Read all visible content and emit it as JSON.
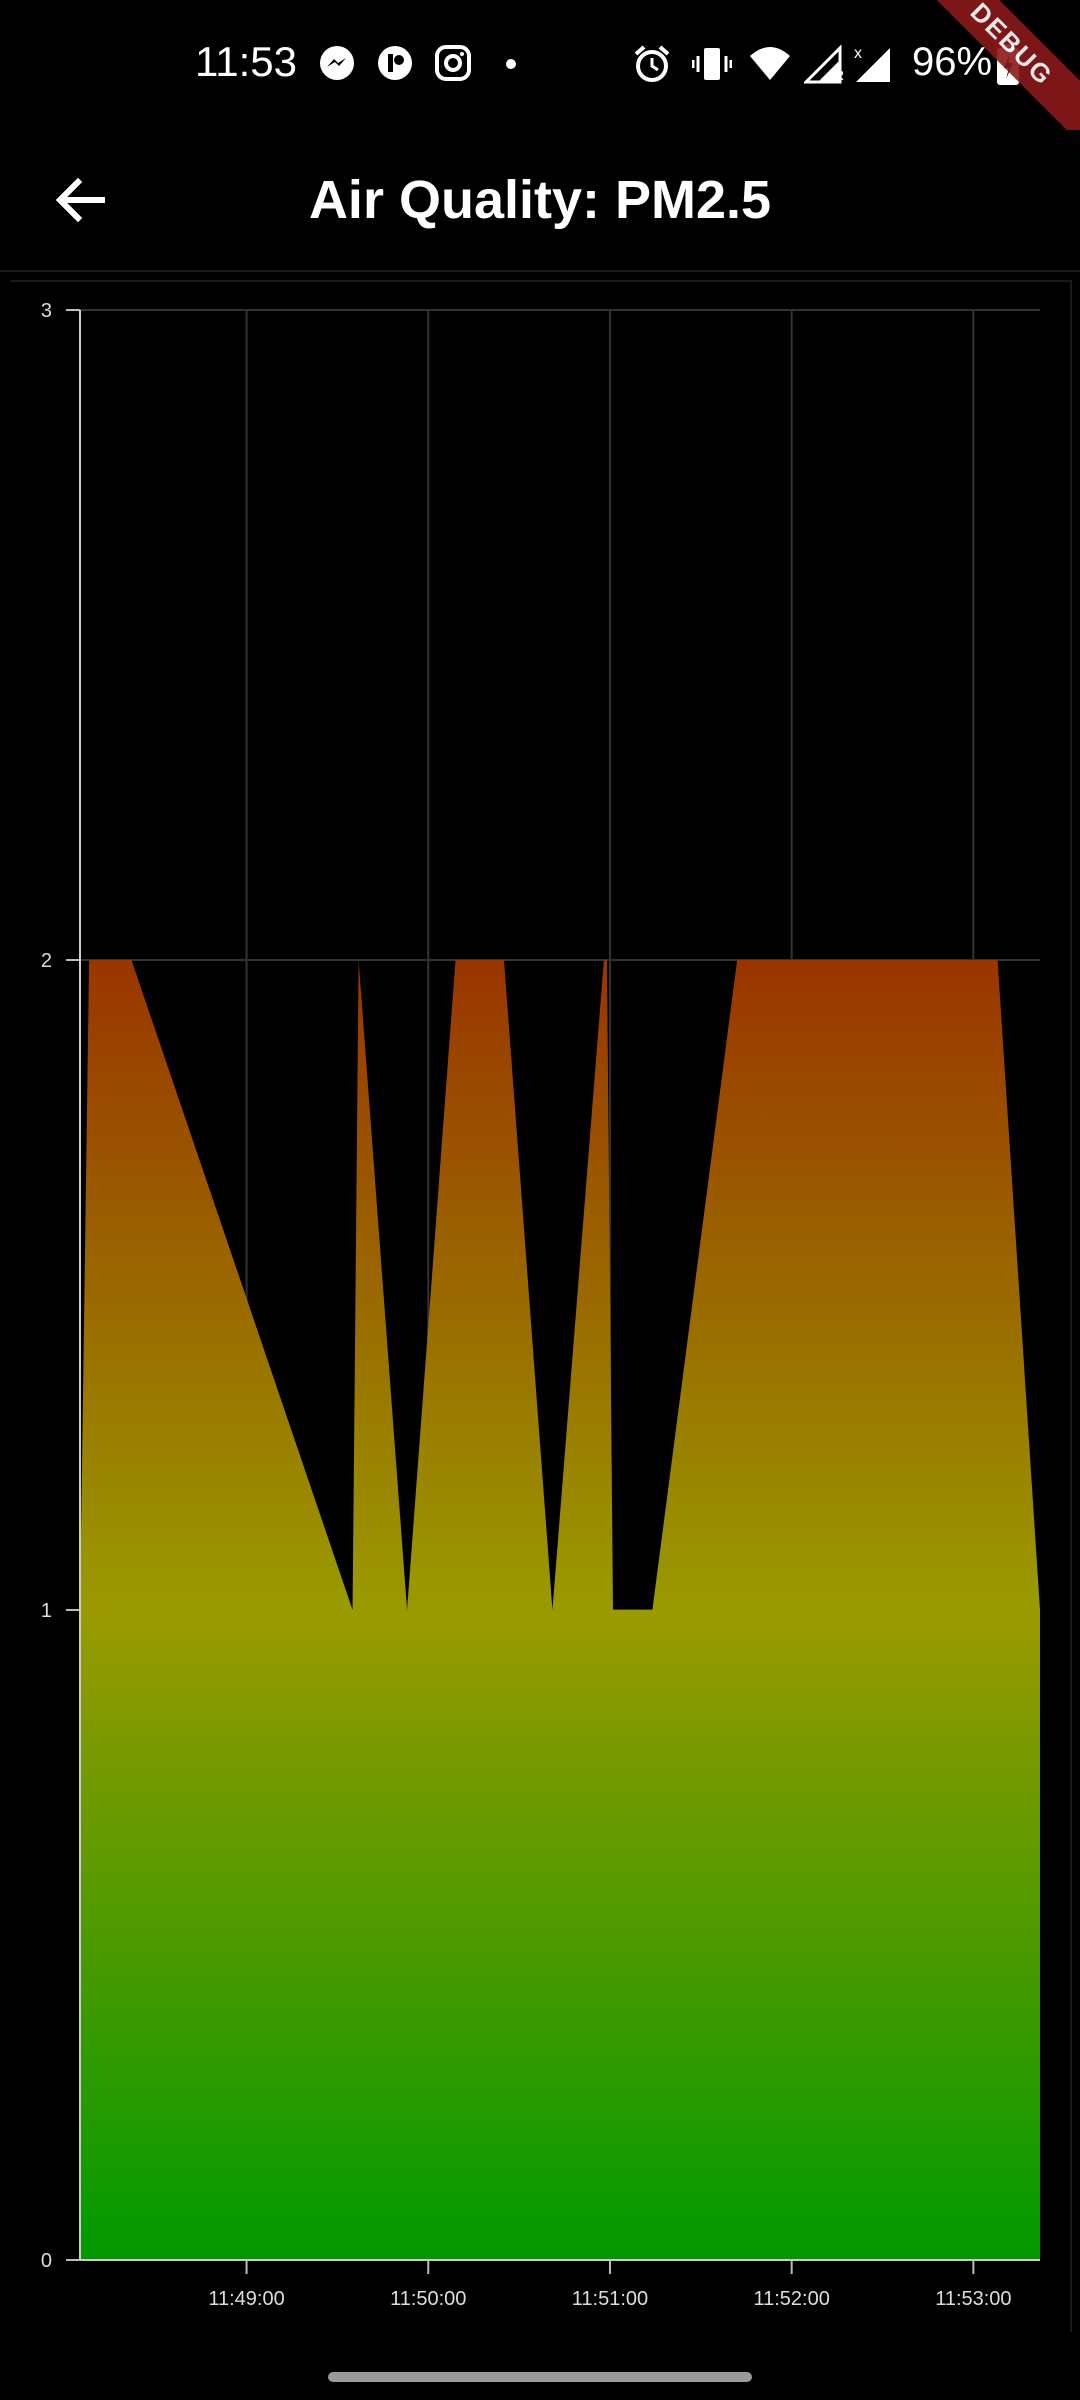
{
  "status_bar": {
    "time": "11:53",
    "battery": "96%",
    "icons": [
      "messenger-icon",
      "app-icon",
      "instagram-icon",
      "dot-icon",
      "alarm-icon",
      "vibrate-icon",
      "wifi-icon",
      "signal-r-icon",
      "signal-x-icon",
      "battery-icon"
    ]
  },
  "debug_banner": "DEBUG",
  "app_bar": {
    "back_icon": "arrow-left-icon",
    "title": "Air Quality: PM2.5"
  },
  "colors": {
    "background": "#000000",
    "grid": "#333333",
    "gradient_top": "#9a3500",
    "gradient_mid": "#9a9a00",
    "gradient_bottom": "#009a00"
  },
  "chart_data": {
    "type": "area",
    "title": "",
    "xlabel": "",
    "ylabel": "",
    "ylim": [
      0,
      3
    ],
    "xlim": [
      "11:48:05",
      "11:53:22"
    ],
    "y_ticks": [
      "0",
      "1",
      "2",
      "3"
    ],
    "x_ticks": [
      "11:49:00",
      "11:50:00",
      "11:51:00",
      "11:52:00",
      "11:53:00"
    ],
    "grid": true,
    "series": [
      {
        "x": [
          "11:48:05",
          "11:48:08",
          "11:48:22",
          "11:49:35",
          "11:49:37",
          "11:49:53",
          "11:50:09",
          "11:50:25",
          "11:50:41",
          "11:50:58",
          "11:50:59",
          "11:51:01",
          "11:51:14",
          "11:51:42",
          "11:53:08",
          "11:53:22"
        ],
        "y": [
          1,
          2,
          2,
          1,
          2,
          1,
          2,
          2,
          1,
          2,
          2,
          1,
          1,
          2,
          2,
          1
        ]
      }
    ]
  }
}
